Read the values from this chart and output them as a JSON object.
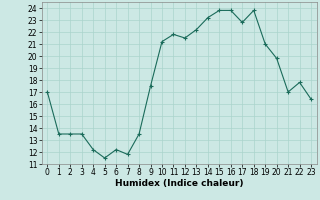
{
  "x": [
    0,
    1,
    2,
    3,
    4,
    5,
    6,
    7,
    8,
    9,
    10,
    11,
    12,
    13,
    14,
    15,
    16,
    17,
    18,
    19,
    20,
    21,
    22,
    23
  ],
  "y": [
    17.0,
    13.5,
    13.5,
    13.5,
    12.2,
    11.5,
    12.2,
    11.8,
    13.5,
    17.5,
    21.2,
    21.8,
    21.5,
    22.2,
    23.2,
    23.8,
    23.8,
    22.8,
    23.8,
    21.0,
    19.8,
    17.0,
    17.8,
    16.4
  ],
  "line_color": "#1a6b5a",
  "marker": "+",
  "marker_size": 3,
  "bg_color": "#cce8e4",
  "grid_color": "#aad4cc",
  "xlabel": "Humidex (Indice chaleur)",
  "xlim": [
    -0.5,
    23.5
  ],
  "ylim": [
    11,
    24.5
  ],
  "yticks": [
    11,
    12,
    13,
    14,
    15,
    16,
    17,
    18,
    19,
    20,
    21,
    22,
    23,
    24
  ],
  "xticks": [
    0,
    1,
    2,
    3,
    4,
    5,
    6,
    7,
    8,
    9,
    10,
    11,
    12,
    13,
    14,
    15,
    16,
    17,
    18,
    19,
    20,
    21,
    22,
    23
  ],
  "xtick_labels": [
    "0",
    "1",
    "2",
    "3",
    "4",
    "5",
    "6",
    "7",
    "8",
    "9",
    "10",
    "11",
    "12",
    "13",
    "14",
    "15",
    "16",
    "17",
    "18",
    "19",
    "20",
    "21",
    "22",
    "23"
  ],
  "label_fontsize": 6.5,
  "tick_fontsize": 5.5
}
